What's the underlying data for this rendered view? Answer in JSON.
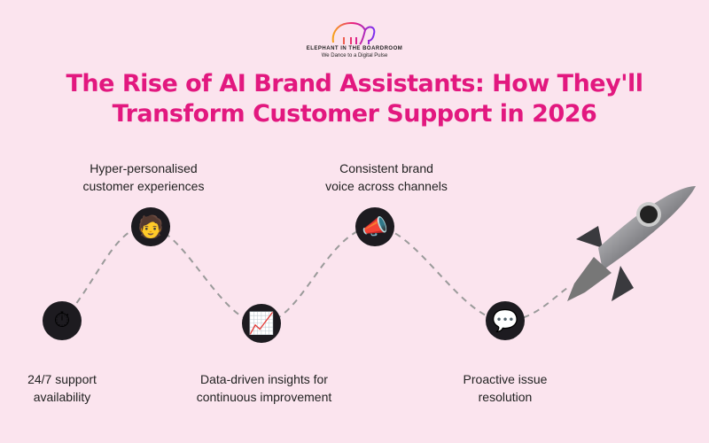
{
  "logo": {
    "name": "ELEPHANT IN THE BOARDROOM",
    "tagline": "We Dance to a Digital Pulse"
  },
  "title": {
    "line1": "The Rise of AI Brand Assistants: How They'll",
    "line2": "Transform Customer Support in 2026"
  },
  "colors": {
    "title": "#e2187f",
    "background": "#fbe4ee",
    "node": "#1d1b20",
    "path": "#9a9a9a"
  },
  "steps": [
    {
      "line1": "24/7 support",
      "line2": "availability",
      "icon": "stopwatch-icon",
      "glyph": "⏱"
    },
    {
      "line1": "Hyper-personalised",
      "line2": "customer experiences",
      "icon": "person-presenting-icon",
      "glyph": "🧑"
    },
    {
      "line1": "Data-driven insights for",
      "line2": "continuous improvement",
      "icon": "chart-increasing-icon",
      "glyph": "📈"
    },
    {
      "line1": "Consistent brand",
      "line2": "voice across channels",
      "icon": "megaphone-icon",
      "glyph": "📣"
    },
    {
      "line1": "Proactive issue",
      "line2": "resolution",
      "icon": "speech-bubbles-icon",
      "glyph": "💬"
    }
  ],
  "end_icon": "rocket-icon"
}
